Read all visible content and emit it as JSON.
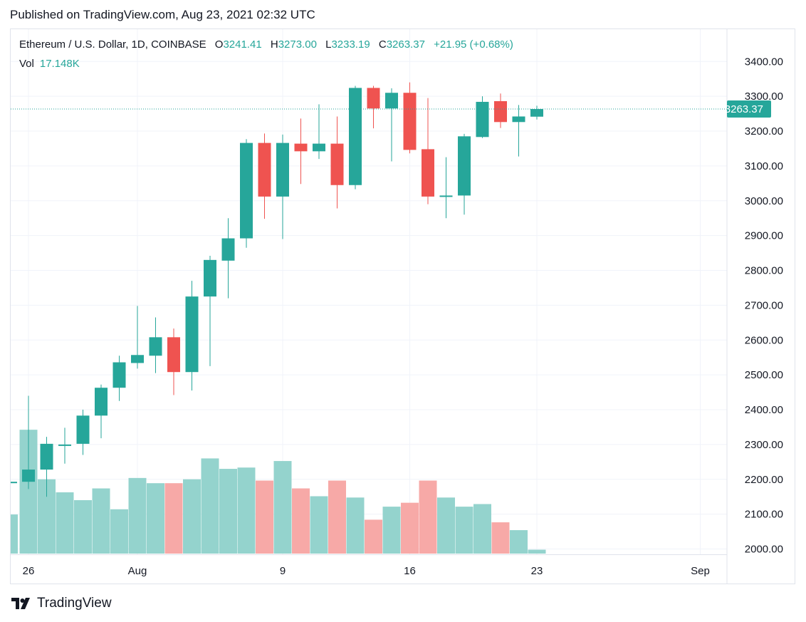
{
  "header": {
    "published": "Published on TradingView.com, Aug 23, 2021 02:32 UTC"
  },
  "legend": {
    "symbol": "Ethereum / U.S. Dollar, 1D, COINBASE",
    "open_label": "O",
    "open": "3241.41",
    "high_label": "H",
    "high": "3273.00",
    "low_label": "L",
    "low": "3233.19",
    "close_label": "C",
    "close": "3263.37",
    "change": "+21.95 (+0.68%)",
    "vol_label": "Vol",
    "vol": "17.148K"
  },
  "footer": {
    "brand": "TradingView"
  },
  "colors": {
    "up": "#26a69a",
    "down": "#ef5350",
    "vol_up": "#94d3cd",
    "vol_down": "#f7a9a7"
  },
  "chart_data": {
    "type": "candlestick",
    "ylim": [
      1975,
      3450
    ],
    "y_ticks": [
      "2000.00",
      "2100.00",
      "2200.00",
      "2300.00",
      "2400.00",
      "2500.00",
      "2600.00",
      "2700.00",
      "2800.00",
      "2900.00",
      "3000.00",
      "3100.00",
      "3200.00",
      "3300.00",
      "3400.00"
    ],
    "x_ticks": [
      {
        "label": "26",
        "index": 1
      },
      {
        "label": "Aug",
        "index": 7
      },
      {
        "label": "9",
        "index": 15
      },
      {
        "label": "16",
        "index": 22
      },
      {
        "label": "23",
        "index": 29
      },
      {
        "label": "Sep",
        "index": 38
      }
    ],
    "last_price": "3263.37",
    "last_price_value": 3263.37,
    "candles": [
      {
        "o": 2190,
        "h": 2195,
        "l": 2185,
        "c": 2193
      },
      {
        "o": 2193,
        "h": 2440,
        "l": 2172,
        "c": 2228
      },
      {
        "o": 2228,
        "h": 2322,
        "l": 2150,
        "c": 2302
      },
      {
        "o": 2300,
        "h": 2348,
        "l": 2245,
        "c": 2300
      },
      {
        "o": 2302,
        "h": 2400,
        "l": 2270,
        "c": 2383
      },
      {
        "o": 2383,
        "h": 2472,
        "l": 2318,
        "c": 2463
      },
      {
        "o": 2463,
        "h": 2555,
        "l": 2425,
        "c": 2536
      },
      {
        "o": 2534,
        "h": 2698,
        "l": 2518,
        "c": 2557
      },
      {
        "o": 2555,
        "h": 2665,
        "l": 2505,
        "c": 2608
      },
      {
        "o": 2608,
        "h": 2633,
        "l": 2442,
        "c": 2508
      },
      {
        "o": 2508,
        "h": 2770,
        "l": 2455,
        "c": 2725
      },
      {
        "o": 2725,
        "h": 2842,
        "l": 2525,
        "c": 2830
      },
      {
        "o": 2828,
        "h": 2950,
        "l": 2720,
        "c": 2892
      },
      {
        "o": 2892,
        "h": 3177,
        "l": 2865,
        "c": 3166
      },
      {
        "o": 3166,
        "h": 3193,
        "l": 2948,
        "c": 3012
      },
      {
        "o": 3012,
        "h": 3190,
        "l": 2890,
        "c": 3166
      },
      {
        "o": 3164,
        "h": 3236,
        "l": 3048,
        "c": 3142
      },
      {
        "o": 3142,
        "h": 3277,
        "l": 3120,
        "c": 3164
      },
      {
        "o": 3164,
        "h": 3242,
        "l": 2978,
        "c": 3045
      },
      {
        "o": 3045,
        "h": 3330,
        "l": 3033,
        "c": 3324
      },
      {
        "o": 3324,
        "h": 3330,
        "l": 3208,
        "c": 3265
      },
      {
        "o": 3265,
        "h": 3323,
        "l": 3113,
        "c": 3310
      },
      {
        "o": 3310,
        "h": 3340,
        "l": 3136,
        "c": 3146
      },
      {
        "o": 3148,
        "h": 3295,
        "l": 2990,
        "c": 3012
      },
      {
        "o": 3012,
        "h": 3125,
        "l": 2950,
        "c": 3015
      },
      {
        "o": 3015,
        "h": 3192,
        "l": 2960,
        "c": 3185
      },
      {
        "o": 3183,
        "h": 3300,
        "l": 3180,
        "c": 3284
      },
      {
        "o": 3286,
        "h": 3308,
        "l": 3209,
        "c": 3226
      },
      {
        "o": 3226,
        "h": 3275,
        "l": 3127,
        "c": 3242
      },
      {
        "o": 3241.41,
        "h": 3273.0,
        "l": 3233.19,
        "c": 3263.37
      }
    ],
    "volume": [
      0.3,
      0.95,
      0.57,
      0.47,
      0.41,
      0.5,
      0.34,
      0.58,
      0.54,
      0.54,
      0.57,
      0.73,
      0.65,
      0.66,
      0.56,
      0.71,
      0.5,
      0.44,
      0.56,
      0.43,
      0.26,
      0.36,
      0.39,
      0.56,
      0.43,
      0.36,
      0.38,
      0.24,
      0.18,
      0.03
    ]
  }
}
